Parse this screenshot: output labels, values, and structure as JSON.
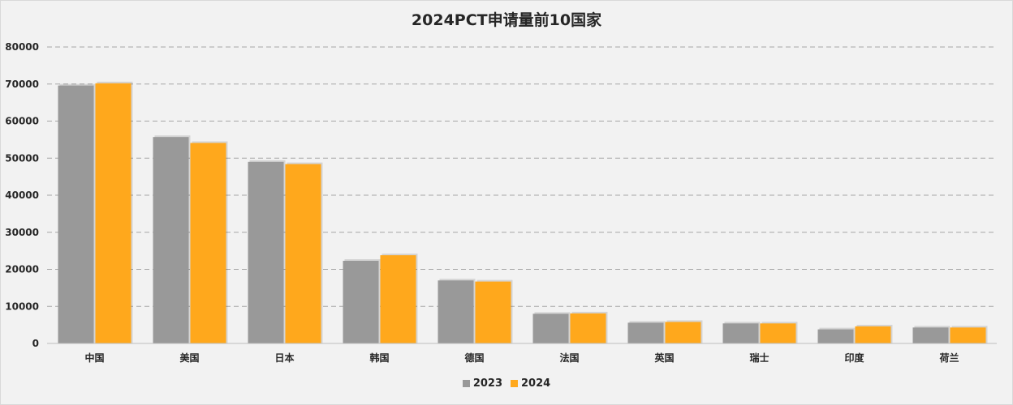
{
  "chart_data": {
    "type": "bar",
    "title": "2024PCT申请量前10国家",
    "categories": [
      "中国",
      "美国",
      "日本",
      "韩国",
      "德国",
      "法国",
      "英国",
      "瑞士",
      "印度",
      "荷兰"
    ],
    "series": [
      {
        "name": "2023",
        "color": "#999999",
        "values": [
          69600,
          55700,
          49000,
          22300,
          17000,
          8000,
          5600,
          5400,
          3800,
          4300
        ]
      },
      {
        "name": "2024",
        "color": "#ffa81c",
        "values": [
          70200,
          54100,
          48400,
          23800,
          16700,
          8100,
          5800,
          5400,
          4600,
          4300
        ]
      }
    ],
    "ylim": [
      0,
      80000
    ],
    "yticks": [
      0,
      10000,
      20000,
      30000,
      40000,
      50000,
      60000,
      70000,
      80000
    ],
    "grid": true,
    "legend_position": "bottom"
  }
}
